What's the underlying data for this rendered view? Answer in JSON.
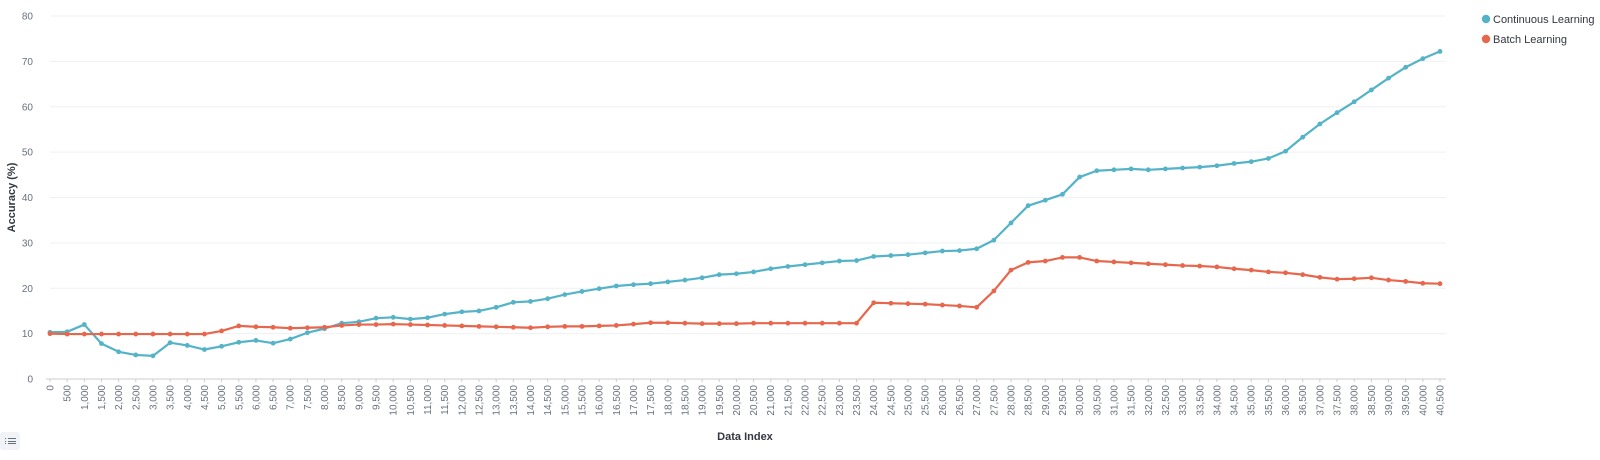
{
  "chart_data": {
    "type": "line",
    "xlabel": "Data Index",
    "ylabel": "Accuracy (%)",
    "ylim": [
      0,
      80
    ],
    "yticks": [
      0,
      10,
      20,
      30,
      40,
      50,
      60,
      70,
      80
    ],
    "grid": "horizontal",
    "legend_position": "top-right",
    "x": [
      0,
      500,
      1000,
      1500,
      2000,
      2500,
      3000,
      3500,
      4000,
      4500,
      5000,
      5500,
      6000,
      6500,
      7000,
      7500,
      8000,
      8500,
      9000,
      9500,
      10000,
      10500,
      11000,
      11500,
      12000,
      12500,
      13000,
      13500,
      14000,
      14500,
      15000,
      15500,
      16000,
      16500,
      17000,
      17500,
      18000,
      18500,
      19000,
      19500,
      20000,
      20500,
      21000,
      21500,
      22000,
      22500,
      23000,
      23500,
      24000,
      24500,
      25000,
      25500,
      26000,
      26500,
      27000,
      27500,
      28000,
      28500,
      29000,
      29500,
      30000,
      30500,
      31000,
      31500,
      32000,
      32500,
      33000,
      33500,
      34000,
      34500,
      35000,
      35500,
      36000,
      36500,
      37000,
      37500,
      38000,
      38500,
      39000,
      39500,
      40000,
      40500
    ],
    "x_tick_labels": [
      "0",
      "500",
      "1,000",
      "1,500",
      "2,000",
      "2,500",
      "3,000",
      "3,500",
      "4,000",
      "4,500",
      "5,000",
      "5,500",
      "6,000",
      "6,500",
      "7,000",
      "7,500",
      "8,000",
      "8,500",
      "9,000",
      "9,500",
      "10,000",
      "10,500",
      "11,000",
      "11,500",
      "12,000",
      "12,500",
      "13,000",
      "13,500",
      "14,000",
      "14,500",
      "15,000",
      "15,500",
      "16,000",
      "16,500",
      "17,000",
      "17,500",
      "18,000",
      "18,500",
      "19,000",
      "19,500",
      "20,000",
      "20,500",
      "21,000",
      "21,500",
      "22,000",
      "22,500",
      "23,000",
      "23,500",
      "24,000",
      "24,500",
      "25,000",
      "25,500",
      "26,000",
      "26,500",
      "27,000",
      "27,500",
      "28,000",
      "28,500",
      "29,000",
      "29,500",
      "30,000",
      "30,500",
      "31,000",
      "31,500",
      "32,000",
      "32,500",
      "33,000",
      "33,500",
      "34,000",
      "34,500",
      "35,000",
      "35,500",
      "36,000",
      "36,500",
      "37,000",
      "37,500",
      "38,000",
      "38,500",
      "39,000",
      "39,500",
      "40,000",
      "40,500"
    ],
    "series": [
      {
        "name": "Continuous Learning",
        "color": "#54b3c7",
        "values": [
          10.3,
          10.4,
          12.0,
          7.8,
          6.0,
          5.3,
          5.1,
          8.0,
          7.4,
          6.5,
          7.2,
          8.1,
          8.5,
          7.9,
          8.8,
          10.2,
          11.1,
          12.3,
          12.6,
          13.4,
          13.6,
          13.2,
          13.5,
          14.3,
          14.8,
          15.0,
          15.8,
          16.9,
          17.1,
          17.7,
          18.6,
          19.3,
          19.9,
          20.5,
          20.8,
          21.0,
          21.4,
          21.8,
          22.3,
          23.0,
          23.2,
          23.6,
          24.3,
          24.8,
          25.2,
          25.6,
          26.0,
          26.1,
          27.0,
          27.2,
          27.4,
          27.8,
          28.2,
          28.3,
          28.7,
          30.6,
          34.4,
          38.2,
          39.4,
          40.7,
          44.5,
          45.9,
          46.1,
          46.3,
          46.1,
          46.3,
          46.5,
          46.7,
          47.0,
          47.5,
          47.9,
          48.6,
          50.2,
          53.3,
          56.2,
          58.7,
          61.1,
          63.7,
          66.3,
          68.7,
          70.6,
          72.2
        ]
      },
      {
        "name": "Batch Learning",
        "color": "#e7664c",
        "values": [
          10.0,
          9.9,
          9.9,
          9.9,
          9.9,
          9.9,
          9.9,
          9.9,
          9.9,
          9.9,
          10.6,
          11.7,
          11.5,
          11.4,
          11.2,
          11.3,
          11.4,
          11.8,
          12.0,
          12.0,
          12.1,
          12.0,
          11.9,
          11.8,
          11.7,
          11.6,
          11.5,
          11.4,
          11.3,
          11.5,
          11.6,
          11.6,
          11.7,
          11.8,
          12.1,
          12.4,
          12.4,
          12.3,
          12.2,
          12.2,
          12.2,
          12.3,
          12.3,
          12.3,
          12.3,
          12.3,
          12.3,
          12.3,
          16.8,
          16.7,
          16.6,
          16.5,
          16.3,
          16.1,
          15.8,
          19.4,
          24.0,
          25.7,
          26.0,
          26.8,
          26.8,
          26.0,
          25.8,
          25.6,
          25.4,
          25.2,
          25.0,
          24.9,
          24.7,
          24.3,
          24.0,
          23.6,
          23.4,
          23.0,
          22.4,
          22.0,
          22.1,
          22.3,
          21.8,
          21.5,
          21.1,
          21.0
        ]
      }
    ]
  }
}
